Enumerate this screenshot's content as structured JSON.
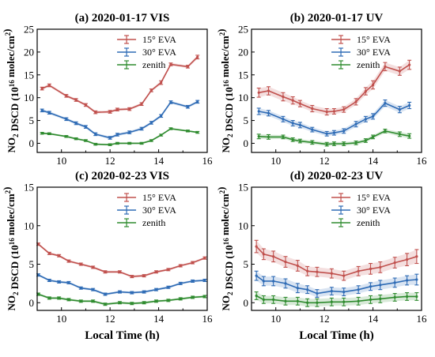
{
  "figure": {
    "ylabel_main": "NO",
    "ylabel_sub": "2",
    "ylabel_mid": " DSCD (10",
    "ylabel_sup": "16",
    "ylabel_unit": " molec/cm",
    "ylabel_sup2": "2",
    "ylabel_close": ")",
    "xlabel": "Local Time (h)"
  },
  "colors": {
    "series_15": "#c0504d",
    "series_30": "#2e6bb5",
    "series_zenith": "#2e8b2e",
    "axis": "#000000"
  },
  "chart_data": [
    {
      "type": "line",
      "title": "(a) 2020-01-17  VIS",
      "xlim": [
        9,
        16
      ],
      "ylim": [
        -2,
        25
      ],
      "xticks": [
        10,
        12,
        14,
        16
      ],
      "yticks": [
        0,
        5,
        10,
        15,
        20,
        25
      ],
      "legend_position": "top-right",
      "series": [
        {
          "name": "15° EVA",
          "color_key": "series_15",
          "x": [
            9.2,
            9.5,
            10.2,
            10.6,
            11.0,
            11.4,
            12.0,
            12.3,
            12.8,
            13.3,
            13.7,
            14.1,
            14.5,
            15.2,
            15.6
          ],
          "y": [
            12.0,
            12.7,
            10.4,
            9.5,
            8.4,
            6.8,
            6.9,
            7.4,
            7.5,
            8.6,
            11.6,
            13.3,
            17.3,
            16.8,
            18.9
          ],
          "err": [
            0.3,
            0.3,
            0.3,
            0.3,
            0.3,
            0.3,
            0.3,
            0.3,
            0.3,
            0.3,
            0.3,
            0.4,
            0.3,
            0.3,
            0.4
          ]
        },
        {
          "name": "30° EVA",
          "color_key": "series_30",
          "x": [
            9.2,
            9.5,
            10.2,
            10.6,
            11.0,
            11.4,
            12.0,
            12.3,
            12.8,
            13.3,
            13.7,
            14.1,
            14.5,
            15.2,
            15.6
          ],
          "y": [
            7.2,
            6.7,
            5.3,
            4.4,
            3.6,
            2.0,
            1.2,
            1.9,
            2.4,
            3.2,
            4.5,
            6.0,
            9.0,
            8.0,
            9.1
          ],
          "err": [
            0.3,
            0.3,
            0.3,
            0.3,
            0.3,
            0.3,
            0.3,
            0.3,
            0.3,
            0.3,
            0.3,
            0.3,
            0.3,
            0.3,
            0.3
          ]
        },
        {
          "name": "zenith",
          "color_key": "series_zenith",
          "x": [
            9.2,
            9.5,
            10.2,
            10.6,
            11.0,
            11.4,
            12.0,
            12.3,
            12.8,
            13.3,
            13.7,
            14.1,
            14.5,
            15.2,
            15.6
          ],
          "y": [
            2.2,
            2.1,
            1.5,
            1.0,
            0.6,
            -0.2,
            -0.3,
            0.0,
            0.0,
            0.0,
            0.6,
            1.8,
            3.2,
            2.7,
            2.4
          ],
          "err": [
            0.2,
            0.2,
            0.2,
            0.2,
            0.2,
            0.2,
            0.2,
            0.2,
            0.2,
            0.2,
            0.2,
            0.2,
            0.2,
            0.2,
            0.2
          ]
        }
      ]
    },
    {
      "type": "line",
      "title": "(b) 2020-01-17  UV",
      "xlim": [
        9,
        16
      ],
      "ylim": [
        -2,
        25
      ],
      "xticks": [
        10,
        12,
        14,
        16
      ],
      "yticks": [
        0,
        5,
        10,
        15,
        20,
        25
      ],
      "legend_position": "top-right",
      "series": [
        {
          "name": "15° EVA",
          "color_key": "series_15",
          "x": [
            9.3,
            9.7,
            10.3,
            10.7,
            11.0,
            11.5,
            12.1,
            12.4,
            12.8,
            13.3,
            13.7,
            14.0,
            14.5,
            15.1,
            15.5
          ],
          "y": [
            11.1,
            11.5,
            10.2,
            9.4,
            8.7,
            7.6,
            6.9,
            7.0,
            7.4,
            9.1,
            11.4,
            12.8,
            16.8,
            15.8,
            17.2
          ],
          "err": [
            1.0,
            0.9,
            0.9,
            0.8,
            0.7,
            0.7,
            0.7,
            0.6,
            0.6,
            0.7,
            0.8,
            0.9,
            0.9,
            0.9,
            1.0
          ]
        },
        {
          "name": "30° EVA",
          "color_key": "series_30",
          "x": [
            9.3,
            9.7,
            10.3,
            10.7,
            11.0,
            11.5,
            12.1,
            12.4,
            12.8,
            13.3,
            13.7,
            14.0,
            14.5,
            15.1,
            15.5
          ],
          "y": [
            7.0,
            6.6,
            5.3,
            4.4,
            4.0,
            3.0,
            2.1,
            2.3,
            2.7,
            4.2,
            5.3,
            5.9,
            8.8,
            7.4,
            8.3
          ],
          "err": [
            0.7,
            0.6,
            0.6,
            0.6,
            0.6,
            0.5,
            0.5,
            0.5,
            0.5,
            0.6,
            0.6,
            0.6,
            0.7,
            0.7,
            0.7
          ]
        },
        {
          "name": "zenith",
          "color_key": "series_zenith",
          "x": [
            9.3,
            9.7,
            10.3,
            10.7,
            11.0,
            11.5,
            12.1,
            12.4,
            12.8,
            13.3,
            13.7,
            14.0,
            14.5,
            15.1,
            15.5
          ],
          "y": [
            1.5,
            1.4,
            1.4,
            0.8,
            0.5,
            0.2,
            -0.2,
            -0.1,
            -0.1,
            0.1,
            0.6,
            1.4,
            2.7,
            2.0,
            1.6
          ],
          "err": [
            0.5,
            0.5,
            0.4,
            0.4,
            0.4,
            0.4,
            0.4,
            0.4,
            0.4,
            0.4,
            0.4,
            0.4,
            0.4,
            0.5,
            0.5
          ]
        }
      ]
    },
    {
      "type": "line",
      "title": "(c) 2020-02-23  VIS",
      "xlim": [
        9,
        16
      ],
      "ylim": [
        -1,
        15
      ],
      "xticks": [
        10,
        12,
        14,
        16
      ],
      "yticks": [
        0,
        5,
        10,
        15
      ],
      "legend_position": "top-right",
      "series": [
        {
          "name": "15° EVA",
          "color_key": "series_15",
          "x": [
            9.05,
            9.5,
            9.9,
            10.3,
            10.8,
            11.3,
            11.8,
            12.4,
            12.9,
            13.4,
            13.9,
            14.4,
            14.9,
            15.4,
            15.9
          ],
          "y": [
            7.6,
            6.4,
            6.1,
            5.4,
            5.0,
            4.6,
            4.0,
            4.0,
            3.4,
            3.5,
            4.0,
            4.3,
            4.8,
            5.2,
            5.8
          ],
          "err": [
            0.15,
            0.15,
            0.15,
            0.15,
            0.15,
            0.15,
            0.15,
            0.15,
            0.15,
            0.15,
            0.15,
            0.15,
            0.15,
            0.15,
            0.15
          ]
        },
        {
          "name": "30° EVA",
          "color_key": "series_30",
          "x": [
            9.05,
            9.5,
            9.9,
            10.3,
            10.8,
            11.3,
            11.8,
            12.4,
            12.9,
            13.4,
            13.9,
            14.4,
            14.9,
            15.4,
            15.9
          ],
          "y": [
            3.6,
            2.9,
            2.7,
            2.6,
            1.9,
            1.7,
            1.1,
            1.4,
            1.3,
            1.4,
            1.7,
            2.0,
            2.5,
            2.8,
            2.9
          ],
          "err": [
            0.15,
            0.15,
            0.15,
            0.15,
            0.15,
            0.15,
            0.15,
            0.15,
            0.15,
            0.15,
            0.15,
            0.15,
            0.15,
            0.15,
            0.15
          ]
        },
        {
          "name": "zenith",
          "color_key": "series_zenith",
          "x": [
            9.05,
            9.5,
            9.9,
            10.3,
            10.8,
            11.3,
            11.8,
            12.4,
            12.9,
            13.4,
            13.9,
            14.4,
            14.9,
            15.4,
            15.9
          ],
          "y": [
            1.1,
            0.6,
            0.6,
            0.4,
            0.2,
            0.2,
            -0.2,
            0.0,
            -0.1,
            0.0,
            0.2,
            0.3,
            0.5,
            0.7,
            0.8
          ],
          "err": [
            0.15,
            0.15,
            0.15,
            0.15,
            0.15,
            0.15,
            0.15,
            0.15,
            0.15,
            0.15,
            0.15,
            0.15,
            0.15,
            0.15,
            0.15
          ]
        }
      ]
    },
    {
      "type": "line",
      "title": "(d) 2020-02-23  UV",
      "xlim": [
        9,
        16
      ],
      "ylim": [
        -1,
        15
      ],
      "xticks": [
        10,
        12,
        14,
        16
      ],
      "yticks": [
        0,
        5,
        10,
        15
      ],
      "legend_position": "top-right",
      "series": [
        {
          "name": "15° EVA",
          "color_key": "series_15",
          "x": [
            9.2,
            9.5,
            9.9,
            10.4,
            10.9,
            11.3,
            11.7,
            12.3,
            12.8,
            13.4,
            13.9,
            14.3,
            14.9,
            15.4,
            15.8
          ],
          "y": [
            7.3,
            6.3,
            6.0,
            5.3,
            4.8,
            4.1,
            4.0,
            3.8,
            3.5,
            4.1,
            4.4,
            4.6,
            5.2,
            5.6,
            6.0
          ],
          "err": [
            0.8,
            0.7,
            0.7,
            0.7,
            0.7,
            0.6,
            0.6,
            0.6,
            0.6,
            0.6,
            0.7,
            0.7,
            0.7,
            0.8,
            0.9
          ]
        },
        {
          "name": "30° EVA",
          "color_key": "series_30",
          "x": [
            9.2,
            9.5,
            9.9,
            10.4,
            10.9,
            11.3,
            11.7,
            12.3,
            12.8,
            13.4,
            13.9,
            14.3,
            14.9,
            15.4,
            15.8
          ],
          "y": [
            3.5,
            2.8,
            2.8,
            2.5,
            1.9,
            1.7,
            1.2,
            1.5,
            1.4,
            1.7,
            2.1,
            2.3,
            2.6,
            2.9,
            3.0
          ],
          "err": [
            0.6,
            0.6,
            0.6,
            0.6,
            0.6,
            0.5,
            0.5,
            0.5,
            0.5,
            0.5,
            0.5,
            0.6,
            0.6,
            0.6,
            0.7
          ]
        },
        {
          "name": "zenith",
          "color_key": "series_zenith",
          "x": [
            9.2,
            9.5,
            9.9,
            10.4,
            10.9,
            11.3,
            11.7,
            12.3,
            12.8,
            13.4,
            13.9,
            14.3,
            14.9,
            15.4,
            15.8
          ],
          "y": [
            0.9,
            0.4,
            0.4,
            0.2,
            0.2,
            0.0,
            0.0,
            0.1,
            0.1,
            0.2,
            0.4,
            0.5,
            0.7,
            0.8,
            0.8
          ],
          "err": [
            0.5,
            0.5,
            0.5,
            0.5,
            0.5,
            0.5,
            0.5,
            0.5,
            0.5,
            0.5,
            0.5,
            0.5,
            0.5,
            0.5,
            0.5
          ]
        }
      ]
    }
  ]
}
